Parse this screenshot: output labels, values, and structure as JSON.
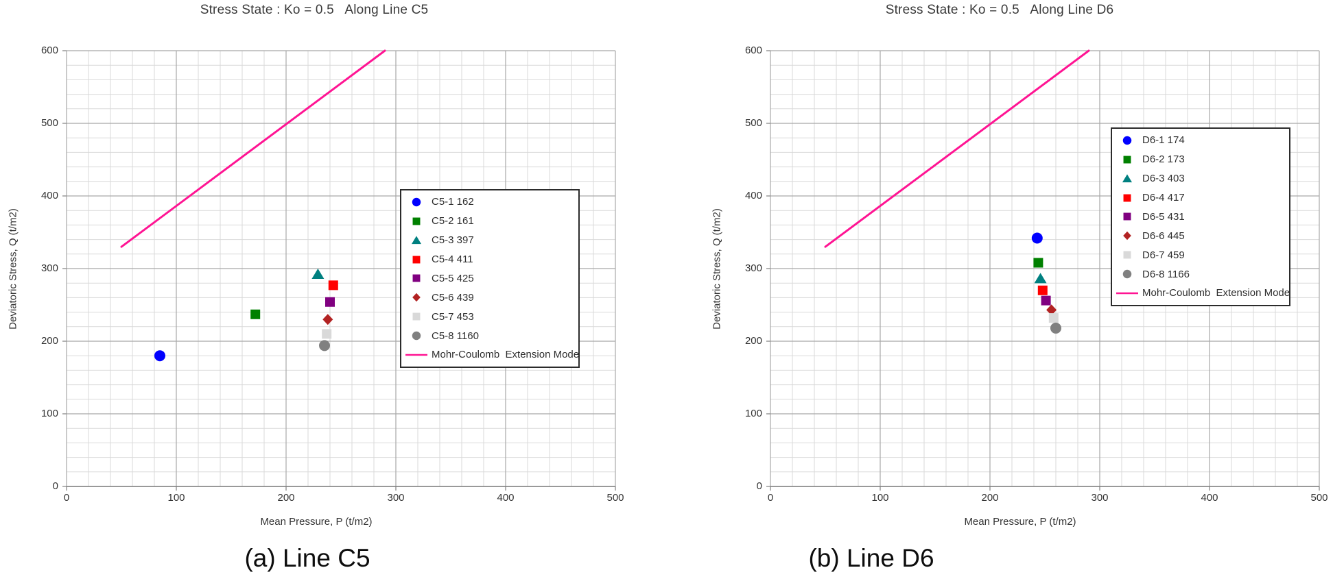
{
  "captions": {
    "a": "(a) Line C5",
    "b": "(b) Line D6"
  },
  "colors": {
    "background": "#FFFFFF",
    "text": "#333333",
    "title_text": "#3A3A3A",
    "caption_text": "#0D0D0D",
    "minor_grid": "#D9D9D9",
    "major_grid": "#A8A8A8",
    "axis": "#7F7F7F",
    "legend_border": "#2B2B2B",
    "mohr_coulomb_pink": "#FF1493"
  },
  "chart_data": [
    {
      "type": "scatter",
      "title": "Stress State : Ko = 0.5   Along Line C5",
      "xlabel": "Mean Pressure, P (t/m2)",
      "ylabel": "Deviatoric Stress, Q (t/m2)",
      "xlim": [
        0,
        500
      ],
      "ylim": [
        0,
        600
      ],
      "xticks": [
        0,
        100,
        200,
        300,
        400,
        500
      ],
      "yticks": [
        0,
        100,
        200,
        300,
        400,
        500,
        600
      ],
      "major_step_x": 100,
      "major_step_y": 100,
      "minor_step_x": 20,
      "minor_step_y": 20,
      "grid": "on",
      "legend_position": "middle-right",
      "series": [
        {
          "label": "C5-1 162",
          "marker": "circle",
          "color": "#0000FF",
          "x": 85,
          "y": 180
        },
        {
          "label": "C5-2 161",
          "marker": "square",
          "color": "#008000",
          "x": 172,
          "y": 237
        },
        {
          "label": "C5-3 397",
          "marker": "triangle",
          "color": "#008080",
          "x": 229,
          "y": 292
        },
        {
          "label": "C5-4 411",
          "marker": "square",
          "color": "#FF0000",
          "x": 243,
          "y": 277
        },
        {
          "label": "C5-5 425",
          "marker": "square",
          "color": "#800080",
          "x": 240,
          "y": 254
        },
        {
          "label": "C5-6 439",
          "marker": "diamond",
          "color": "#B22222",
          "x": 238,
          "y": 230
        },
        {
          "label": "C5-7 453",
          "marker": "square",
          "color": "#D9D9D9",
          "x": 237,
          "y": 210
        },
        {
          "label": "C5-8 1160",
          "marker": "circle",
          "color": "#808080",
          "x": 235,
          "y": 194
        }
      ],
      "mc_line": {
        "label": "Mohr-Coulomb  Extension Mode",
        "color": "#FF1493",
        "x": [
          50,
          290
        ],
        "y": [
          330,
          600
        ]
      }
    },
    {
      "type": "scatter",
      "title": "Stress State : Ko = 0.5   Along Line D6",
      "xlabel": "Mean Pressure, P (t/m2)",
      "ylabel": "Deviatoric Stress, Q (t/m2)",
      "xlim": [
        0,
        500
      ],
      "ylim": [
        0,
        600
      ],
      "xticks": [
        0,
        100,
        200,
        300,
        400,
        500
      ],
      "yticks": [
        0,
        100,
        200,
        300,
        400,
        500,
        600
      ],
      "major_step_x": 100,
      "major_step_y": 100,
      "minor_step_x": 20,
      "minor_step_y": 20,
      "grid": "on",
      "legend_position": "upper-right",
      "series": [
        {
          "label": "D6-1 174",
          "marker": "circle",
          "color": "#0000FF",
          "x": 243,
          "y": 342
        },
        {
          "label": "D6-2 173",
          "marker": "square",
          "color": "#008000",
          "x": 244,
          "y": 308
        },
        {
          "label": "D6-3 403",
          "marker": "triangle",
          "color": "#008080",
          "x": 246,
          "y": 286
        },
        {
          "label": "D6-4 417",
          "marker": "square",
          "color": "#FF0000",
          "x": 248,
          "y": 270
        },
        {
          "label": "D6-5 431",
          "marker": "square",
          "color": "#800080",
          "x": 251,
          "y": 256
        },
        {
          "label": "D6-6 445",
          "marker": "diamond",
          "color": "#B22222",
          "x": 256,
          "y": 243
        },
        {
          "label": "D6-7 459",
          "marker": "square",
          "color": "#D9D9D9",
          "x": 258,
          "y": 232
        },
        {
          "label": "D6-8 1166",
          "marker": "circle",
          "color": "#808080",
          "x": 260,
          "y": 218
        }
      ],
      "mc_line": {
        "label": "Mohr-Coulomb  Extension Mode",
        "color": "#FF1493",
        "x": [
          50,
          290
        ],
        "y": [
          330,
          600
        ]
      }
    }
  ]
}
